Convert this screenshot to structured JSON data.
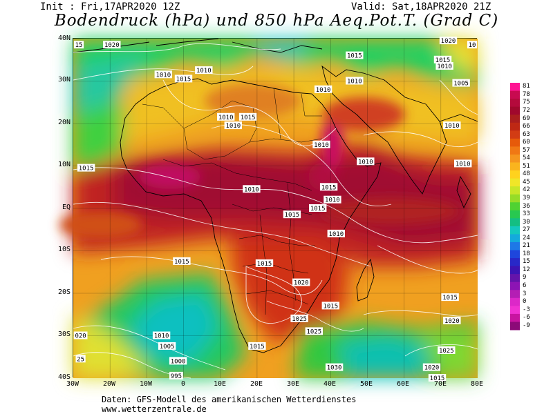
{
  "header": {
    "init": "Init : Fri,17APR2020 12Z",
    "valid": "Valid: Sat,18APR2020 21Z",
    "title": "Bodendruck (hPa) und 850 hPa Aeq.Pot.T. (Grad C)"
  },
  "map": {
    "lat_labels": [
      "40N",
      "30N",
      "20N",
      "10N",
      "EQ",
      "10S",
      "20S",
      "30S",
      "40S"
    ],
    "lon_labels": [
      "30W",
      "20W",
      "10W",
      "0",
      "10E",
      "20E",
      "30E",
      "40E",
      "50E",
      "60E",
      "70E",
      "80E"
    ],
    "isobar_labels": [
      {
        "text": "15",
        "lon": -28.5,
        "lat": 38.5
      },
      {
        "text": "1020",
        "lon": -19.5,
        "lat": 38.5
      },
      {
        "text": "1020",
        "lon": 72,
        "lat": 39.5
      },
      {
        "text": "10",
        "lon": 78.5,
        "lat": 38.5
      },
      {
        "text": "1015",
        "lon": 46.5,
        "lat": 36
      },
      {
        "text": "1015",
        "lon": 70.5,
        "lat": 35
      },
      {
        "text": "1010",
        "lon": 71,
        "lat": 33.5
      },
      {
        "text": "1010",
        "lon": -5.5,
        "lat": 31.5
      },
      {
        "text": "1015",
        "lon": 0,
        "lat": 30.5
      },
      {
        "text": "1010",
        "lon": 5.5,
        "lat": 32.5
      },
      {
        "text": "1010",
        "lon": 46.5,
        "lat": 30
      },
      {
        "text": "1010",
        "lon": 38,
        "lat": 28
      },
      {
        "text": "1005",
        "lon": 75.5,
        "lat": 29.5
      },
      {
        "text": "1010",
        "lon": 11.5,
        "lat": 21.5
      },
      {
        "text": "1015",
        "lon": 17.5,
        "lat": 21.5
      },
      {
        "text": "1010",
        "lon": 13.5,
        "lat": 19.5
      },
      {
        "text": "1010",
        "lon": 73,
        "lat": 19.5
      },
      {
        "text": "1010",
        "lon": 37.5,
        "lat": 15
      },
      {
        "text": "1010",
        "lon": 49.5,
        "lat": 11
      },
      {
        "text": "1010",
        "lon": 76,
        "lat": 10.5
      },
      {
        "text": "1015",
        "lon": -26.5,
        "lat": 9.5
      },
      {
        "text": "1010",
        "lon": 18.5,
        "lat": 4.5
      },
      {
        "text": "1015",
        "lon": 39.5,
        "lat": 5
      },
      {
        "text": "1010",
        "lon": 40.5,
        "lat": 2
      },
      {
        "text": "1015",
        "lon": 36.5,
        "lat": 0
      },
      {
        "text": "1015",
        "lon": 29.5,
        "lat": -1.5
      },
      {
        "text": "1010",
        "lon": 41.5,
        "lat": -6
      },
      {
        "text": "1015",
        "lon": -0.5,
        "lat": -12.5
      },
      {
        "text": "1015",
        "lon": 22,
        "lat": -13
      },
      {
        "text": "1020",
        "lon": 32,
        "lat": -17.5
      },
      {
        "text": "1015",
        "lon": 72.5,
        "lat": -21
      },
      {
        "text": "1015",
        "lon": 40,
        "lat": -23
      },
      {
        "text": "1025",
        "lon": 31.5,
        "lat": -26
      },
      {
        "text": "1020",
        "lon": 73,
        "lat": -26.5
      },
      {
        "text": "1025",
        "lon": 35.5,
        "lat": -29
      },
      {
        "text": "020",
        "lon": -28,
        "lat": -30
      },
      {
        "text": "1010",
        "lon": -6,
        "lat": -30
      },
      {
        "text": "1005",
        "lon": -4.5,
        "lat": -32.5
      },
      {
        "text": "1015",
        "lon": 20,
        "lat": -32.5
      },
      {
        "text": "1025",
        "lon": 71.5,
        "lat": -33.5
      },
      {
        "text": "1000",
        "lon": -1.5,
        "lat": -36
      },
      {
        "text": "1030",
        "lon": 41,
        "lat": -37.5
      },
      {
        "text": "1020",
        "lon": 67.5,
        "lat": -37.5
      },
      {
        "text": "25",
        "lon": -28,
        "lat": -35.5
      },
      {
        "text": "995",
        "lon": -2,
        "lat": -39.5
      },
      {
        "text": "1015",
        "lon": 69,
        "lat": -40
      }
    ]
  },
  "colorbar": {
    "labels": [
      "81",
      "78",
      "75",
      "72",
      "69",
      "66",
      "63",
      "60",
      "57",
      "54",
      "51",
      "48",
      "45",
      "42",
      "39",
      "36",
      "33",
      "30",
      "27",
      "24",
      "21",
      "18",
      "15",
      "12",
      "9",
      "6",
      "3",
      "0",
      "-3",
      "-6",
      "-9"
    ],
    "colors": [
      "#ff1493",
      "#c80a50",
      "#b40a3c",
      "#a0082d",
      "#aa1e1e",
      "#be2814",
      "#d23c14",
      "#e65a0a",
      "#f07814",
      "#f5961e",
      "#fab41e",
      "#ffd21e",
      "#f0e628",
      "#c8e628",
      "#96dc28",
      "#50d232",
      "#28c850",
      "#14be82",
      "#14c8be",
      "#14aadc",
      "#1e78e6",
      "#1e46dc",
      "#2828c8",
      "#3c14b4",
      "#6414aa",
      "#8c14b4",
      "#b41eb4",
      "#dc28c8",
      "#f032d2",
      "#c814a0",
      "#8c0a78"
    ]
  },
  "footer": {
    "line1": "Daten: GFS-Modell des amerikanischen Wetterdienstes",
    "line2": "www.wetterzentrale.de"
  }
}
